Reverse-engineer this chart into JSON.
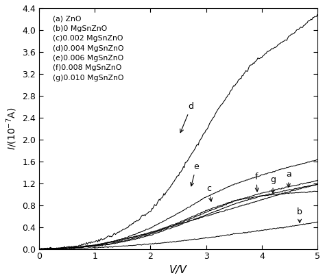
{
  "title": "",
  "xlabel": "V/V",
  "ylabel": "I/(10⁻⁷A)",
  "xlim": [
    0,
    5
  ],
  "ylim": [
    0,
    4.4
  ],
  "yticks": [
    0.0,
    0.4,
    0.8,
    1.2,
    1.6,
    2.0,
    2.4,
    2.8,
    3.2,
    3.6,
    4.0,
    4.4
  ],
  "xticks": [
    0,
    1,
    2,
    3,
    4,
    5
  ],
  "legend_lines": [
    "(a) ZnO",
    "(b)0 MgSnZnO",
    "(c)0.002 MgSnZnO",
    "(d)0.004 MgSnZnO",
    "(e)0.006 MgSnZnO",
    "(f)0.008 MgSnZnO",
    "(g)0.010 MgSnZnO"
  ],
  "line_color": "#000000",
  "background_color": "#ffffff",
  "curves": {
    "a": {
      "x": [
        0.0,
        0.3,
        0.5,
        0.7,
        1.0,
        1.3,
        1.6,
        2.0,
        2.5,
        3.0,
        3.5,
        4.0,
        4.5,
        5.0
      ],
      "y": [
        0.0,
        0.01,
        0.02,
        0.04,
        0.07,
        0.13,
        0.2,
        0.3,
        0.45,
        0.6,
        0.75,
        0.9,
        1.05,
        1.18
      ]
    },
    "b": {
      "x": [
        0.0,
        0.3,
        0.5,
        0.7,
        1.0,
        1.3,
        1.6,
        2.0,
        2.5,
        3.0,
        3.5,
        4.0,
        4.5,
        5.0
      ],
      "y": [
        0.0,
        0.003,
        0.006,
        0.012,
        0.022,
        0.038,
        0.06,
        0.09,
        0.14,
        0.2,
        0.27,
        0.34,
        0.41,
        0.49
      ]
    },
    "c": {
      "x": [
        0.0,
        0.3,
        0.5,
        0.7,
        1.0,
        1.3,
        1.6,
        2.0,
        2.5,
        3.0,
        3.5,
        4.0,
        4.5,
        5.0
      ],
      "y": [
        0.0,
        0.01,
        0.018,
        0.035,
        0.065,
        0.12,
        0.19,
        0.29,
        0.48,
        0.7,
        0.88,
        0.97,
        1.02,
        1.05
      ]
    },
    "d": {
      "x": [
        0.0,
        0.3,
        0.5,
        0.7,
        1.0,
        1.3,
        1.6,
        2.0,
        2.3,
        2.6,
        2.9,
        3.2,
        3.5,
        3.8,
        4.1,
        4.4,
        4.7,
        5.0
      ],
      "y": [
        0.0,
        0.015,
        0.03,
        0.06,
        0.13,
        0.24,
        0.4,
        0.7,
        1.05,
        1.5,
        2.0,
        2.52,
        2.98,
        3.35,
        3.6,
        3.8,
        4.05,
        4.28
      ]
    },
    "e": {
      "x": [
        0.0,
        0.3,
        0.5,
        0.7,
        1.0,
        1.3,
        1.6,
        2.0,
        2.5,
        3.0,
        3.5,
        4.0,
        4.5,
        5.0
      ],
      "y": [
        0.0,
        0.008,
        0.016,
        0.032,
        0.07,
        0.13,
        0.22,
        0.38,
        0.65,
        0.95,
        1.18,
        1.35,
        1.5,
        1.63
      ]
    },
    "f": {
      "x": [
        0.0,
        0.3,
        0.5,
        0.7,
        1.0,
        1.3,
        1.6,
        2.0,
        2.5,
        3.0,
        3.5,
        4.0,
        4.5,
        5.0
      ],
      "y": [
        0.0,
        0.007,
        0.014,
        0.028,
        0.055,
        0.1,
        0.165,
        0.27,
        0.46,
        0.67,
        0.87,
        1.02,
        1.14,
        1.25
      ]
    },
    "g": {
      "x": [
        0.0,
        0.3,
        0.5,
        0.7,
        1.0,
        1.3,
        1.6,
        2.0,
        2.5,
        3.0,
        3.5,
        4.0,
        4.5,
        5.0
      ],
      "y": [
        0.0,
        0.007,
        0.013,
        0.025,
        0.05,
        0.09,
        0.15,
        0.25,
        0.43,
        0.62,
        0.82,
        0.97,
        1.08,
        1.18
      ]
    }
  }
}
